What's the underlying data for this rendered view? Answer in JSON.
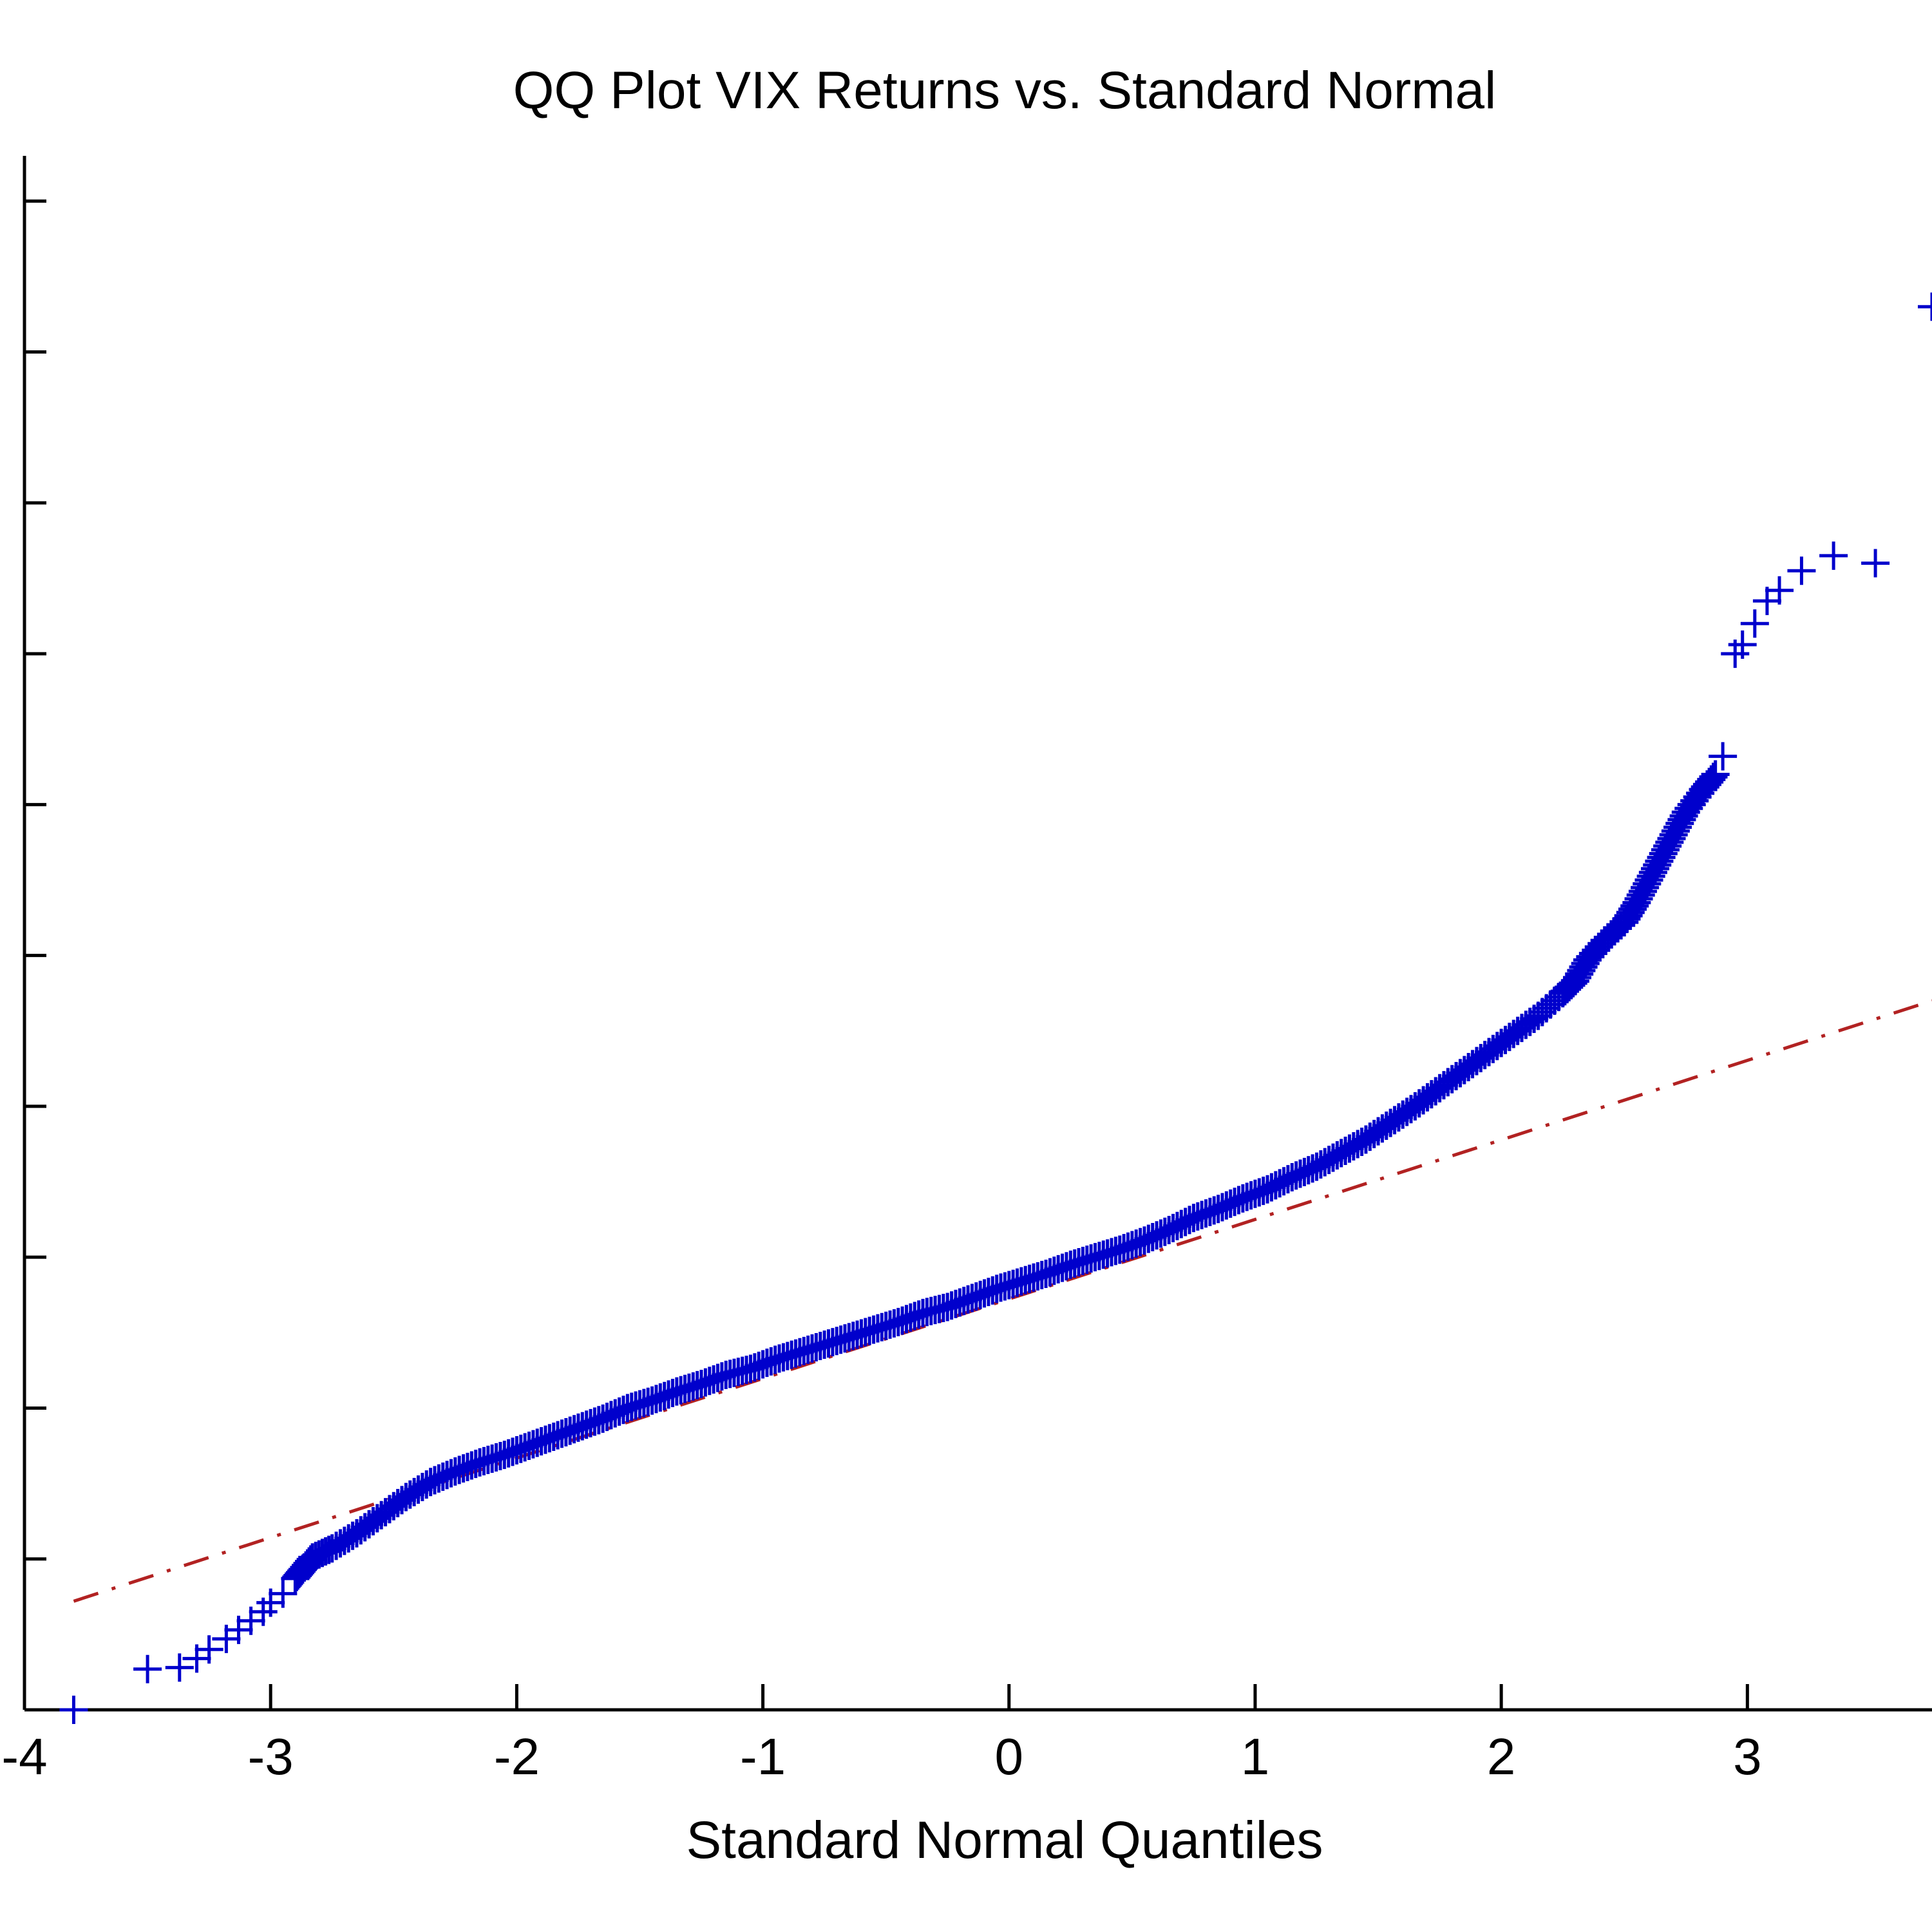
{
  "chart_data": {
    "type": "scatter",
    "title": "QQ Plot VIX Returns vs. Standard Normal",
    "xlabel": "Standard Normal Quantiles",
    "ylabel": "",
    "xlim": [
      -4,
      3.75
    ],
    "ylim": [
      -0.3,
      0.73
    ],
    "xticks": [
      -4,
      -3,
      -2,
      -1,
      0,
      1,
      2,
      3
    ],
    "xtick_labels": [
      "-4",
      "-3",
      "-2",
      "-1",
      "0",
      "1",
      "2",
      "3"
    ],
    "yticks": [
      -0.3,
      -0.2,
      -0.1,
      0.0,
      0.1,
      0.2,
      0.3,
      0.4,
      0.5,
      0.6,
      0.7
    ],
    "ytick_labels": [],
    "grid": false,
    "legend": "none",
    "series": [
      {
        "marker": "+",
        "color": "#0000cc",
        "x": [
          -3.8,
          -3.5,
          -3.37,
          -3.3,
          -3.25,
          -3.18,
          -3.13,
          -3.08,
          -3.03,
          -3.0,
          -2.95,
          -2.9,
          -2.87,
          -2.83,
          -2.75,
          -2.65,
          -2.55,
          -2.45,
          -2.35,
          -2.25,
          -2.15,
          -2.05,
          -1.95,
          -1.85,
          -1.75,
          -1.65,
          -1.55,
          -1.45,
          -1.35,
          -1.25,
          -1.15,
          -1.05,
          -0.95,
          -0.85,
          -0.75,
          -0.65,
          -0.55,
          -0.45,
          -0.35,
          -0.25,
          -0.15,
          -0.05,
          0.05,
          0.15,
          0.25,
          0.35,
          0.45,
          0.55,
          0.65,
          0.75,
          0.85,
          0.95,
          1.05,
          1.15,
          1.25,
          1.35,
          1.45,
          1.55,
          1.65,
          1.75,
          1.85,
          1.95,
          2.05,
          2.15,
          2.25,
          2.3,
          2.35,
          2.42,
          2.5,
          2.55,
          2.6,
          2.65,
          2.7,
          2.75,
          2.82,
          2.87,
          2.9,
          2.95,
          2.98,
          3.03,
          3.08,
          3.13,
          3.22,
          3.35,
          3.52,
          3.75
        ],
        "y": [
          -0.3,
          -0.273,
          -0.272,
          -0.266,
          -0.26,
          -0.253,
          -0.247,
          -0.241,
          -0.235,
          -0.229,
          -0.223,
          -0.213,
          -0.207,
          -0.199,
          -0.193,
          -0.183,
          -0.171,
          -0.159,
          -0.149,
          -0.142,
          -0.136,
          -0.131,
          -0.125,
          -0.119,
          -0.113,
          -0.107,
          -0.1,
          -0.095,
          -0.089,
          -0.084,
          -0.078,
          -0.074,
          -0.068,
          -0.063,
          -0.058,
          -0.053,
          -0.048,
          -0.043,
          -0.037,
          -0.033,
          -0.027,
          -0.021,
          -0.016,
          -0.011,
          -0.005,
          0.0,
          0.005,
          0.011,
          0.018,
          0.026,
          0.032,
          0.039,
          0.045,
          0.053,
          0.06,
          0.069,
          0.078,
          0.089,
          0.1,
          0.112,
          0.124,
          0.136,
          0.148,
          0.16,
          0.175,
          0.183,
          0.197,
          0.21,
          0.222,
          0.235,
          0.25,
          0.265,
          0.28,
          0.295,
          0.31,
          0.32,
          0.332,
          0.4,
          0.406,
          0.42,
          0.435,
          0.442,
          0.455,
          0.465,
          0.46,
          0.63
        ]
      }
    ],
    "reference_line": {
      "style": "dash-dot",
      "color": "#b22222",
      "x": [
        -3.8,
        3.75
      ],
      "y": [
        -0.228,
        0.17
      ]
    }
  }
}
